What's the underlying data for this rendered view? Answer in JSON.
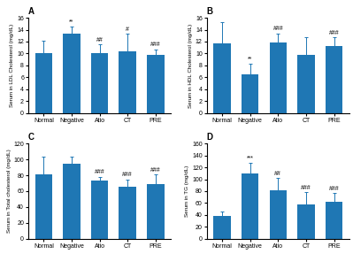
{
  "chart_data": [
    {
      "type": "bar",
      "title": "A",
      "ylabel": "Serum in LDL Cholesterol (mg/dL)",
      "categories": [
        "Normal",
        "Negative",
        "Atio",
        "CT",
        "PRE"
      ],
      "values": [
        10.0,
        13.3,
        10.0,
        10.3,
        9.7
      ],
      "errors": [
        2.2,
        1.2,
        1.5,
        3.0,
        1.0
      ],
      "annotations": [
        null,
        "**",
        "##",
        "#",
        "###"
      ],
      "ylim": [
        0,
        16
      ],
      "yticks": [
        0,
        2,
        4,
        6,
        8,
        10,
        12,
        14,
        16
      ],
      "grid": false
    },
    {
      "type": "bar",
      "title": "B",
      "ylabel": "Serum in HDL Cholesterol (mg/dL)",
      "categories": [
        "Normal",
        "Negative",
        "Atio",
        "CT",
        "PRE"
      ],
      "values": [
        11.7,
        6.5,
        11.9,
        9.8,
        11.2
      ],
      "errors": [
        3.5,
        1.8,
        1.5,
        3.0,
        1.5
      ],
      "annotations": [
        null,
        "**",
        "###",
        null,
        "###"
      ],
      "ylim": [
        0,
        16
      ],
      "yticks": [
        0,
        2,
        4,
        6,
        8,
        10,
        12,
        14,
        16
      ],
      "grid": false
    },
    {
      "type": "bar",
      "title": "C",
      "ylabel": "Serum in Total cholesterol (mg/dL)",
      "categories": [
        "Normal",
        "Negative",
        "Atio",
        "CT",
        "PRE"
      ],
      "values": [
        81,
        95,
        73,
        65,
        69
      ],
      "errors": [
        22,
        8,
        5,
        10,
        12
      ],
      "annotations": [
        null,
        null,
        "###",
        "###",
        "###"
      ],
      "ylim": [
        0,
        120
      ],
      "yticks": [
        0,
        20,
        40,
        60,
        80,
        100,
        120
      ],
      "grid": false
    },
    {
      "type": "bar",
      "title": "D",
      "ylabel": "Serum in TG (mg/dL)",
      "categories": [
        "Normal",
        "Negative",
        "Atio",
        "CT",
        "PRE"
      ],
      "values": [
        38,
        110,
        82,
        58,
        62
      ],
      "errors": [
        8,
        18,
        20,
        20,
        15
      ],
      "annotations": [
        null,
        "***",
        "##",
        "###",
        "###"
      ],
      "ylim": [
        0,
        160
      ],
      "yticks": [
        0,
        20,
        40,
        60,
        80,
        100,
        120,
        140,
        160
      ],
      "grid": false
    }
  ]
}
